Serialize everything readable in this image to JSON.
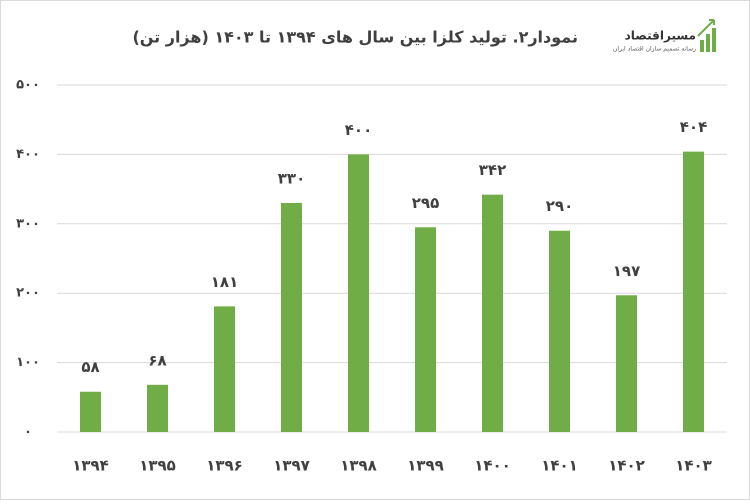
{
  "chart_data": {
    "type": "bar",
    "title": "نمودار۲. تولید کلزا بین سال های ۱۳۹۴ تا ۱۴۰۳ (هزار تن)",
    "logo": {
      "name": "مسیراقتصاد",
      "tagline": "رسانه تصمیم سازان اقتصاد ایران"
    },
    "categories": [
      "۱۳۹۴",
      "۱۳۹۵",
      "۱۳۹۶",
      "۱۳۹۷",
      "۱۳۹۸",
      "۱۳۹۹",
      "۱۴۰۰",
      "۱۴۰۱",
      "۱۴۰۲",
      "۱۴۰۳"
    ],
    "values": [
      58,
      68,
      181,
      330,
      400,
      295,
      342,
      290,
      197,
      404
    ],
    "value_labels": [
      "۵۸",
      "۶۸",
      "۱۸۱",
      "۳۳۰",
      "۴۰۰",
      "۲۹۵",
      "۳۴۲",
      "۲۹۰",
      "۱۹۷",
      "۴۰۴"
    ],
    "color": "#70ad47",
    "ylim": [
      0,
      500
    ],
    "yticks": [
      {
        "value": 0,
        "label": "۰"
      },
      {
        "value": 100,
        "label": "۱۰۰"
      },
      {
        "value": 200,
        "label": "۲۰۰"
      },
      {
        "value": 300,
        "label": "۳۰۰"
      },
      {
        "value": 400,
        "label": "۴۰۰"
      },
      {
        "value": 500,
        "label": "۵۰۰"
      }
    ],
    "grid": true
  }
}
